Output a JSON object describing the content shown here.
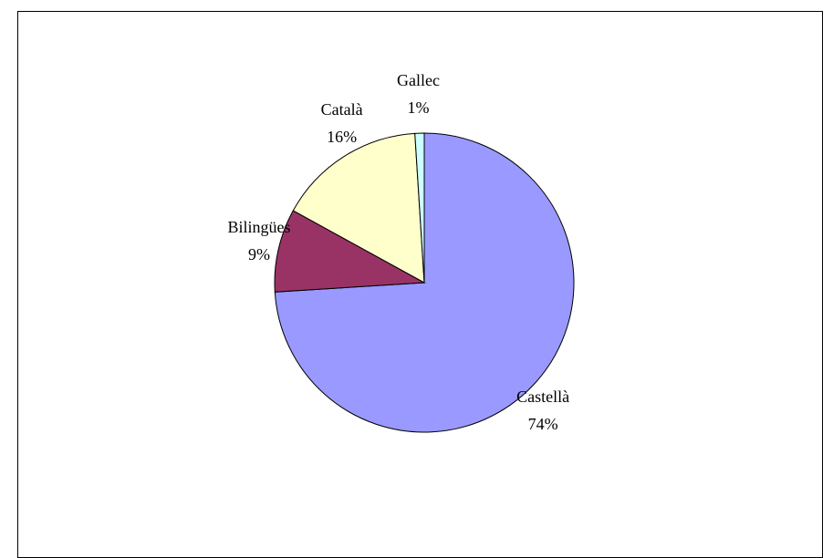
{
  "chart_data": {
    "type": "pie",
    "title": "",
    "start_angle_deg": 0,
    "direction": "clockwise",
    "legend": "none",
    "slices": [
      {
        "name": "Castellà",
        "value": 74,
        "label": "74%",
        "color": "#9999ff"
      },
      {
        "name": "Bilingües",
        "value": 9,
        "label": "9%",
        "color": "#993366"
      },
      {
        "name": "Català",
        "value": 16,
        "label": "16%",
        "color": "#ffffcc"
      },
      {
        "name": "Gallec",
        "value": 1,
        "label": "1%",
        "color": "#ccffff"
      }
    ]
  }
}
